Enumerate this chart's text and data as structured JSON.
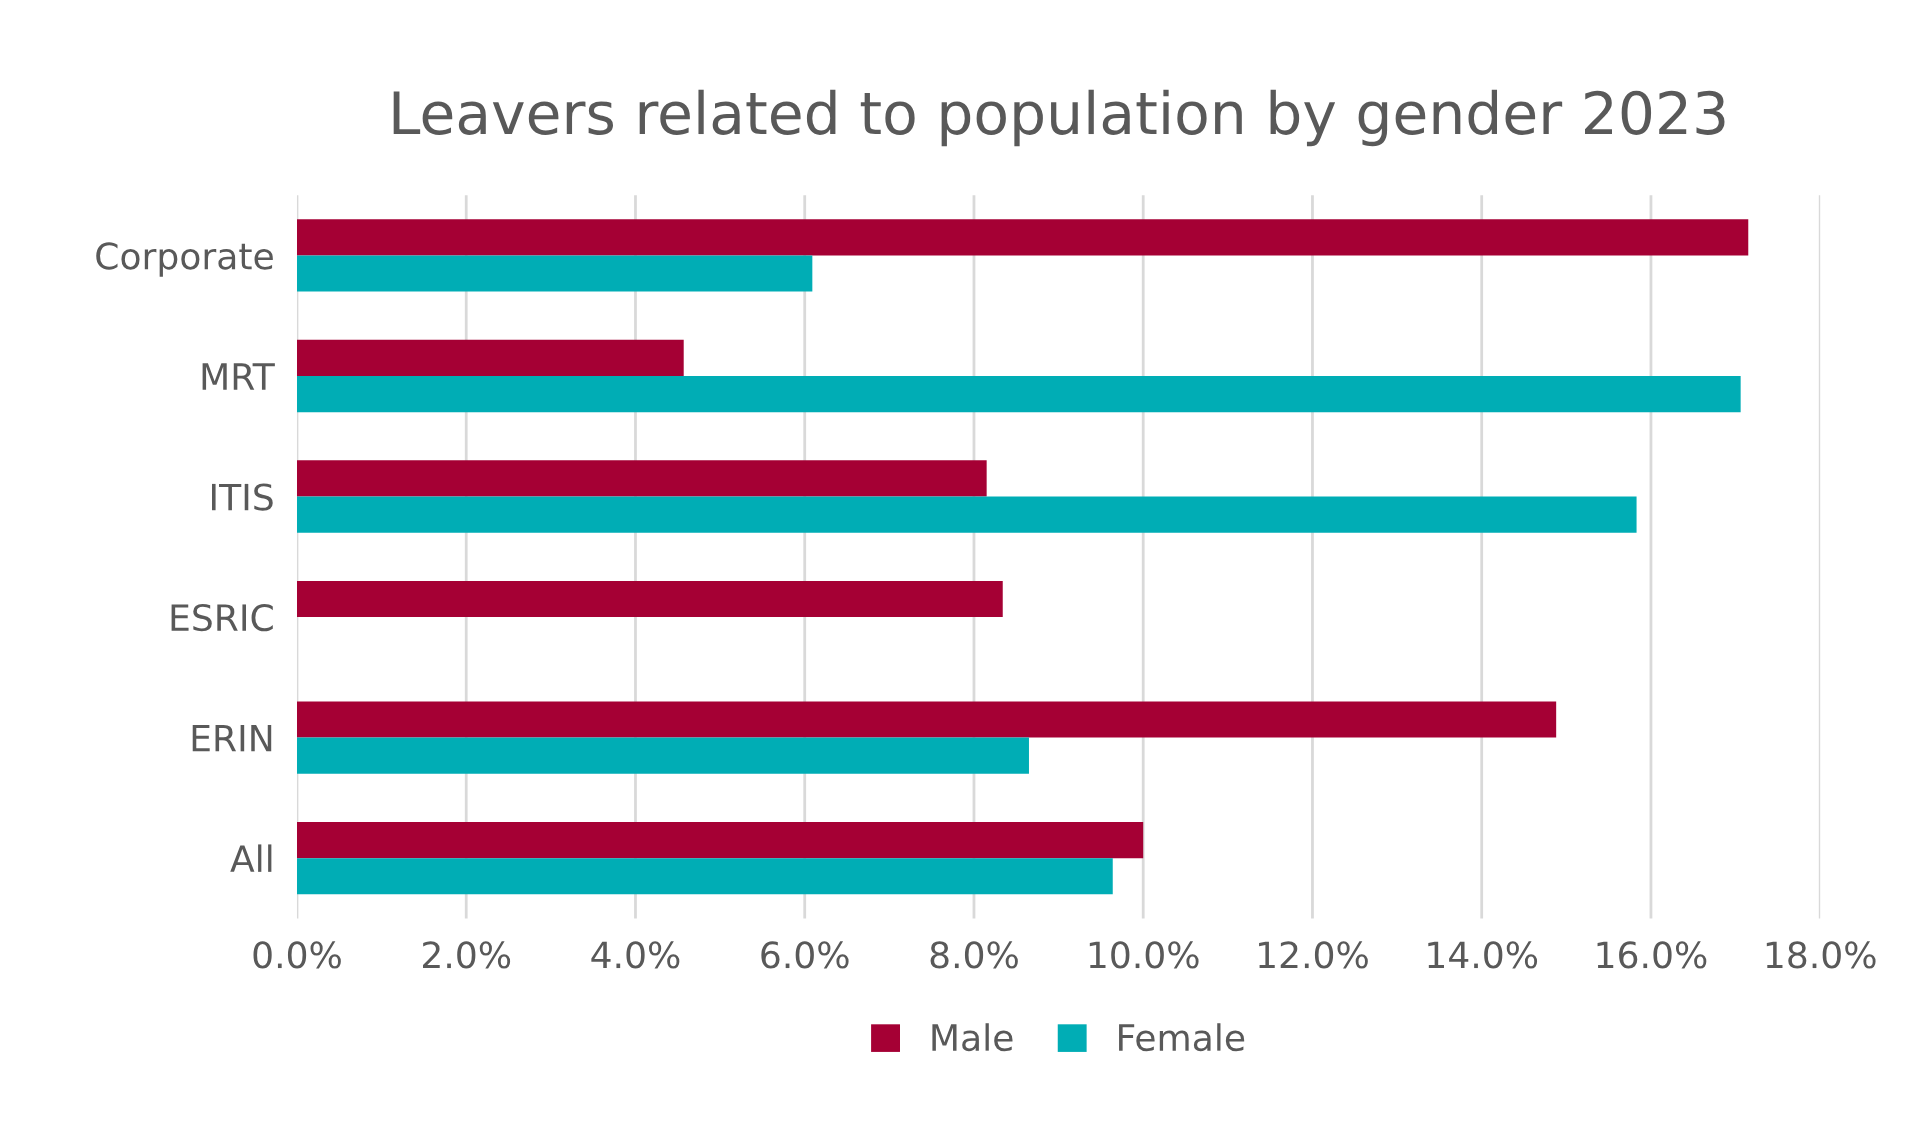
{
  "chart_data": {
    "type": "bar",
    "orientation": "horizontal",
    "title": "Leavers related to population by gender 2023",
    "categories": [
      "Corporate",
      "MRT",
      "ITIS",
      "ESRIC",
      "ERIN",
      "All"
    ],
    "series": [
      {
        "name": "Male",
        "color": "#a50034",
        "values": [
          17.15,
          4.57,
          8.15,
          8.34,
          14.88,
          10.0
        ]
      },
      {
        "name": "Female",
        "color": "#00adb5",
        "values": [
          6.09,
          17.06,
          15.83,
          0,
          8.65,
          9.64
        ]
      }
    ],
    "xlim": [
      0,
      18
    ],
    "xticks": [
      {
        "value": 0,
        "label": "0.0%"
      },
      {
        "value": 2,
        "label": "2.0%"
      },
      {
        "value": 4,
        "label": "4.0%"
      },
      {
        "value": 6,
        "label": "6.0%"
      },
      {
        "value": 8,
        "label": "8.0%"
      },
      {
        "value": 10,
        "label": "10.0%"
      },
      {
        "value": 12,
        "label": "12.0%"
      },
      {
        "value": 14,
        "label": "14.0%"
      },
      {
        "value": 16,
        "label": "16.0%"
      },
      {
        "value": 18,
        "label": "18.0%"
      }
    ],
    "grid": "x",
    "legend": "bottom"
  }
}
